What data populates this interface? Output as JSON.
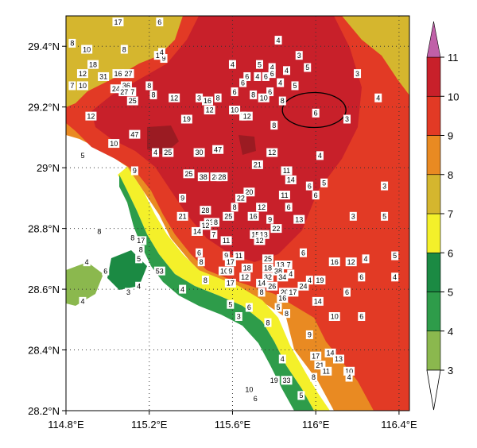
{
  "map": {
    "lon_ticks": [
      "114.8°E",
      "115.2°E",
      "115.6°E",
      "116°E",
      "116.4°E"
    ],
    "lat_ticks": [
      "29.4°N",
      "29.2°N",
      "29°N",
      "28.8°N",
      "28.6°N",
      "28.4°N",
      "28.2°N"
    ],
    "lon_values": [
      114.8,
      115.2,
      115.6,
      116.0,
      116.4
    ],
    "lat_values": [
      29.4,
      29.2,
      29.0,
      28.8,
      28.6,
      28.4,
      28.2
    ],
    "extent": {
      "lon": [
        114.8,
        116.45
      ],
      "lat": [
        28.2,
        29.5
      ]
    }
  },
  "colorbar": {
    "levels": [
      "3",
      "4",
      "5",
      "6",
      "7",
      "8",
      "9",
      "10",
      "11"
    ],
    "colors": [
      "#8bb84e",
      "#2e9c4a",
      "#1b8a43",
      "#f4f02a",
      "#d5b62e",
      "#e98a22",
      "#e23a25",
      "#c8202a",
      "#9b1b22",
      "#7a1418"
    ],
    "top_color": "#c060a8",
    "bottom_color": "#ffffff"
  },
  "stations": [
    {
      "v": "17",
      "lon": 115.05,
      "lat": 29.48
    },
    {
      "v": "6",
      "lon": 115.25,
      "lat": 29.48
    },
    {
      "v": "8",
      "lon": 114.83,
      "lat": 29.41
    },
    {
      "v": "10",
      "lon": 114.9,
      "lat": 29.39
    },
    {
      "v": "8",
      "lon": 115.08,
      "lat": 29.39
    },
    {
      "v": "1",
      "lon": 115.24,
      "lat": 29.37
    },
    {
      "v": "9",
      "lon": 115.27,
      "lat": 29.36
    },
    {
      "v": "4",
      "lon": 115.26,
      "lat": 29.38
    },
    {
      "v": "4",
      "lon": 115.82,
      "lat": 29.42
    },
    {
      "v": "3",
      "lon": 115.92,
      "lat": 29.37
    },
    {
      "v": "18",
      "lon": 114.93,
      "lat": 29.34
    },
    {
      "v": "12",
      "lon": 114.88,
      "lat": 29.31
    },
    {
      "v": "31",
      "lon": 114.98,
      "lat": 29.3
    },
    {
      "v": "16",
      "lon": 115.05,
      "lat": 29.31
    },
    {
      "v": "27",
      "lon": 115.1,
      "lat": 29.31
    },
    {
      "v": "7",
      "lon": 114.83,
      "lat": 29.27
    },
    {
      "v": "10",
      "lon": 114.88,
      "lat": 29.27
    },
    {
      "v": "36",
      "lon": 115.09,
      "lat": 29.27
    },
    {
      "v": "24",
      "lon": 115.04,
      "lat": 29.26
    },
    {
      "v": "27",
      "lon": 115.08,
      "lat": 29.25
    },
    {
      "v": "7",
      "lon": 115.12,
      "lat": 29.25
    },
    {
      "v": "8",
      "lon": 115.2,
      "lat": 29.27
    },
    {
      "v": "25",
      "lon": 115.12,
      "lat": 29.22
    },
    {
      "v": "8",
      "lon": 115.22,
      "lat": 29.24
    },
    {
      "v": "12",
      "lon": 115.32,
      "lat": 29.23
    },
    {
      "v": "4",
      "lon": 115.6,
      "lat": 29.34
    },
    {
      "v": "5",
      "lon": 115.73,
      "lat": 29.34
    },
    {
      "v": "4",
      "lon": 115.79,
      "lat": 29.33
    },
    {
      "v": "6",
      "lon": 115.67,
      "lat": 29.3
    },
    {
      "v": "4",
      "lon": 115.72,
      "lat": 29.3
    },
    {
      "v": "6",
      "lon": 115.76,
      "lat": 29.3
    },
    {
      "v": "6",
      "lon": 115.79,
      "lat": 29.31
    },
    {
      "v": "4",
      "lon": 115.86,
      "lat": 29.32
    },
    {
      "v": "5",
      "lon": 115.96,
      "lat": 29.33
    },
    {
      "v": "3",
      "lon": 116.2,
      "lat": 29.31
    },
    {
      "v": "6",
      "lon": 115.65,
      "lat": 29.28
    },
    {
      "v": "4",
      "lon": 115.83,
      "lat": 29.28
    },
    {
      "v": "5",
      "lon": 115.9,
      "lat": 29.27
    },
    {
      "v": "6",
      "lon": 115.78,
      "lat": 29.25
    },
    {
      "v": "8",
      "lon": 115.7,
      "lat": 29.24
    },
    {
      "v": "10",
      "lon": 115.75,
      "lat": 29.23
    },
    {
      "v": "3",
      "lon": 115.44,
      "lat": 29.23
    },
    {
      "v": "16",
      "lon": 115.48,
      "lat": 29.22
    },
    {
      "v": "8",
      "lon": 115.53,
      "lat": 29.23
    },
    {
      "v": "6",
      "lon": 115.61,
      "lat": 29.25
    },
    {
      "v": "8",
      "lon": 115.84,
      "lat": 29.22
    },
    {
      "v": "4",
      "lon": 116.3,
      "lat": 29.23
    },
    {
      "v": "12",
      "lon": 115.49,
      "lat": 29.19
    },
    {
      "v": "10",
      "lon": 115.61,
      "lat": 29.19
    },
    {
      "v": "7",
      "lon": 115.65,
      "lat": 29.17
    },
    {
      "v": "12",
      "lon": 115.67,
      "lat": 29.17
    },
    {
      "v": "6",
      "lon": 116.0,
      "lat": 29.18
    },
    {
      "v": "3",
      "lon": 116.15,
      "lat": 29.16
    },
    {
      "v": "12",
      "lon": 114.92,
      "lat": 29.17
    },
    {
      "v": "19",
      "lon": 115.38,
      "lat": 29.16
    },
    {
      "v": "8",
      "lon": 115.8,
      "lat": 29.14
    },
    {
      "v": "47",
      "lon": 115.13,
      "lat": 29.11
    },
    {
      "v": "10",
      "lon": 115.03,
      "lat": 29.08
    },
    {
      "v": "4",
      "lon": 115.23,
      "lat": 29.05
    },
    {
      "v": "25",
      "lon": 115.29,
      "lat": 29.05
    },
    {
      "v": "30",
      "lon": 115.44,
      "lat": 29.05
    },
    {
      "v": "47",
      "lon": 115.53,
      "lat": 29.06
    },
    {
      "v": "12",
      "lon": 115.79,
      "lat": 29.05
    },
    {
      "v": "4",
      "lon": 116.02,
      "lat": 29.04
    },
    {
      "v": "5",
      "lon": 114.88,
      "lat": 29.04
    },
    {
      "v": "9",
      "lon": 115.13,
      "lat": 28.99
    },
    {
      "v": "21",
      "lon": 115.72,
      "lat": 29.01
    },
    {
      "v": "11",
      "lon": 115.86,
      "lat": 28.99
    },
    {
      "v": "25",
      "lon": 115.39,
      "lat": 28.98
    },
    {
      "v": "38",
      "lon": 115.46,
      "lat": 28.97
    },
    {
      "v": "28",
      "lon": 115.52,
      "lat": 28.97
    },
    {
      "v": "28",
      "lon": 115.55,
      "lat": 28.97
    },
    {
      "v": "14",
      "lon": 115.88,
      "lat": 28.96
    },
    {
      "v": "6",
      "lon": 115.97,
      "lat": 28.94
    },
    {
      "v": "5",
      "lon": 116.04,
      "lat": 28.95
    },
    {
      "v": "3",
      "lon": 116.33,
      "lat": 28.94
    },
    {
      "v": "20",
      "lon": 115.68,
      "lat": 28.92
    },
    {
      "v": "11",
      "lon": 115.85,
      "lat": 28.91
    },
    {
      "v": "6",
      "lon": 116.0,
      "lat": 28.91
    },
    {
      "v": "9",
      "lon": 115.36,
      "lat": 28.9
    },
    {
      "v": "22",
      "lon": 115.64,
      "lat": 28.9
    },
    {
      "v": "8",
      "lon": 115.61,
      "lat": 28.87
    },
    {
      "v": "12",
      "lon": 115.74,
      "lat": 28.87
    },
    {
      "v": "6",
      "lon": 115.87,
      "lat": 28.87
    },
    {
      "v": "28",
      "lon": 115.47,
      "lat": 28.86
    },
    {
      "v": "21",
      "lon": 115.36,
      "lat": 28.84
    },
    {
      "v": "25",
      "lon": 115.58,
      "lat": 28.84
    },
    {
      "v": "16",
      "lon": 115.7,
      "lat": 28.84
    },
    {
      "v": "9",
      "lon": 115.78,
      "lat": 28.83
    },
    {
      "v": "13",
      "lon": 115.92,
      "lat": 28.83
    },
    {
      "v": "3",
      "lon": 116.18,
      "lat": 28.84
    },
    {
      "v": "5",
      "lon": 116.33,
      "lat": 28.84
    },
    {
      "v": "23",
      "lon": 115.49,
      "lat": 28.82
    },
    {
      "v": "8",
      "lon": 115.52,
      "lat": 28.82
    },
    {
      "v": "12",
      "lon": 115.47,
      "lat": 28.81
    },
    {
      "v": "22",
      "lon": 115.81,
      "lat": 28.8
    },
    {
      "v": "14",
      "lon": 115.43,
      "lat": 28.79
    },
    {
      "v": "7",
      "lon": 115.51,
      "lat": 28.78
    },
    {
      "v": "15",
      "lon": 115.71,
      "lat": 28.78
    },
    {
      "v": "13",
      "lon": 115.75,
      "lat": 28.78
    },
    {
      "v": "11",
      "lon": 115.57,
      "lat": 28.76
    },
    {
      "v": "12",
      "lon": 115.73,
      "lat": 28.76
    },
    {
      "v": "17",
      "lon": 115.16,
      "lat": 28.76
    },
    {
      "v": "8",
      "lon": 115.12,
      "lat": 28.77
    },
    {
      "v": "6",
      "lon": 115.94,
      "lat": 28.72
    },
    {
      "v": "6",
      "lon": 115.44,
      "lat": 28.72
    },
    {
      "v": "9",
      "lon": 115.57,
      "lat": 28.71
    },
    {
      "v": "11",
      "lon": 115.63,
      "lat": 28.71
    },
    {
      "v": "8",
      "lon": 115.45,
      "lat": 28.69
    },
    {
      "v": "17",
      "lon": 115.59,
      "lat": 28.69
    },
    {
      "v": "18",
      "lon": 115.67,
      "lat": 28.67
    },
    {
      "v": "25",
      "lon": 115.77,
      "lat": 28.7
    },
    {
      "v": "13",
      "lon": 115.83,
      "lat": 28.68
    },
    {
      "v": "7",
      "lon": 115.87,
      "lat": 28.68
    },
    {
      "v": "16",
      "lon": 116.09,
      "lat": 28.69
    },
    {
      "v": "12",
      "lon": 116.17,
      "lat": 28.69
    },
    {
      "v": "4",
      "lon": 116.24,
      "lat": 28.7
    },
    {
      "v": "5",
      "lon": 116.38,
      "lat": 28.71
    },
    {
      "v": "53",
      "lon": 115.25,
      "lat": 28.66
    },
    {
      "v": "10",
      "lon": 115.56,
      "lat": 28.66
    },
    {
      "v": "9",
      "lon": 115.59,
      "lat": 28.66
    },
    {
      "v": "18",
      "lon": 115.77,
      "lat": 28.67
    },
    {
      "v": "38",
      "lon": 115.82,
      "lat": 28.66
    },
    {
      "v": "12",
      "lon": 115.66,
      "lat": 28.64
    },
    {
      "v": "32",
      "lon": 115.77,
      "lat": 28.64
    },
    {
      "v": "34",
      "lon": 115.84,
      "lat": 28.64
    },
    {
      "v": "4",
      "lon": 115.88,
      "lat": 28.65
    },
    {
      "v": "8",
      "lon": 115.47,
      "lat": 28.63
    },
    {
      "v": "4",
      "lon": 115.97,
      "lat": 28.63
    },
    {
      "v": "19",
      "lon": 116.02,
      "lat": 28.63
    },
    {
      "v": "6",
      "lon": 116.22,
      "lat": 28.64
    },
    {
      "v": "4",
      "lon": 116.38,
      "lat": 28.64
    },
    {
      "v": "17",
      "lon": 115.59,
      "lat": 28.62
    },
    {
      "v": "14",
      "lon": 115.74,
      "lat": 28.62
    },
    {
      "v": "26",
      "lon": 115.79,
      "lat": 28.61
    },
    {
      "v": "24",
      "lon": 115.94,
      "lat": 28.61
    },
    {
      "v": "4",
      "lon": 115.36,
      "lat": 28.6
    },
    {
      "v": "8",
      "lon": 115.74,
      "lat": 28.59
    },
    {
      "v": "20",
      "lon": 115.85,
      "lat": 28.59
    },
    {
      "v": "17",
      "lon": 115.89,
      "lat": 28.59
    },
    {
      "v": "6",
      "lon": 116.15,
      "lat": 28.59
    },
    {
      "v": "16",
      "lon": 115.84,
      "lat": 28.57
    },
    {
      "v": "14",
      "lon": 116.01,
      "lat": 28.56
    },
    {
      "v": "5",
      "lon": 115.59,
      "lat": 28.55
    },
    {
      "v": "6",
      "lon": 115.68,
      "lat": 28.54
    },
    {
      "v": "5",
      "lon": 115.82,
      "lat": 28.54
    },
    {
      "v": "8",
      "lon": 115.86,
      "lat": 28.52
    },
    {
      "v": "3",
      "lon": 115.63,
      "lat": 28.51
    },
    {
      "v": "8",
      "lon": 115.77,
      "lat": 28.49
    },
    {
      "v": "10",
      "lon": 116.09,
      "lat": 28.51
    },
    {
      "v": "6",
      "lon": 116.22,
      "lat": 28.51
    },
    {
      "v": "9",
      "lon": 115.97,
      "lat": 28.45
    },
    {
      "v": "17",
      "lon": 116.0,
      "lat": 28.38
    },
    {
      "v": "14",
      "lon": 116.07,
      "lat": 28.39
    },
    {
      "v": "13",
      "lon": 116.11,
      "lat": 28.37
    },
    {
      "v": "4",
      "lon": 115.84,
      "lat": 28.37
    },
    {
      "v": "21",
      "lon": 116.02,
      "lat": 28.35
    },
    {
      "v": "11",
      "lon": 116.05,
      "lat": 28.33
    },
    {
      "v": "10",
      "lon": 116.16,
      "lat": 28.33
    },
    {
      "v": "8",
      "lon": 115.99,
      "lat": 28.31
    },
    {
      "v": "4",
      "lon": 116.16,
      "lat": 28.31
    },
    {
      "v": "19",
      "lon": 115.8,
      "lat": 28.3
    },
    {
      "v": "33",
      "lon": 115.86,
      "lat": 28.3
    },
    {
      "v": "10",
      "lon": 115.68,
      "lat": 28.27
    },
    {
      "v": "5",
      "lon": 115.93,
      "lat": 28.25
    },
    {
      "v": "6",
      "lon": 115.71,
      "lat": 28.24
    },
    {
      "v": "8",
      "lon": 114.96,
      "lat": 28.79
    },
    {
      "v": "8",
      "lon": 115.16,
      "lat": 28.73
    },
    {
      "v": "5",
      "lon": 115.15,
      "lat": 28.7
    },
    {
      "v": "4",
      "lon": 114.9,
      "lat": 28.69
    },
    {
      "v": "6",
      "lon": 114.99,
      "lat": 28.66
    },
    {
      "v": "4",
      "lon": 115.15,
      "lat": 28.61
    },
    {
      "v": "3",
      "lon": 115.1,
      "lat": 28.59
    },
    {
      "v": "4",
      "lon": 114.88,
      "lat": 28.56
    }
  ],
  "outlined_region": {
    "lon": 116.0,
    "lat": 29.19
  }
}
